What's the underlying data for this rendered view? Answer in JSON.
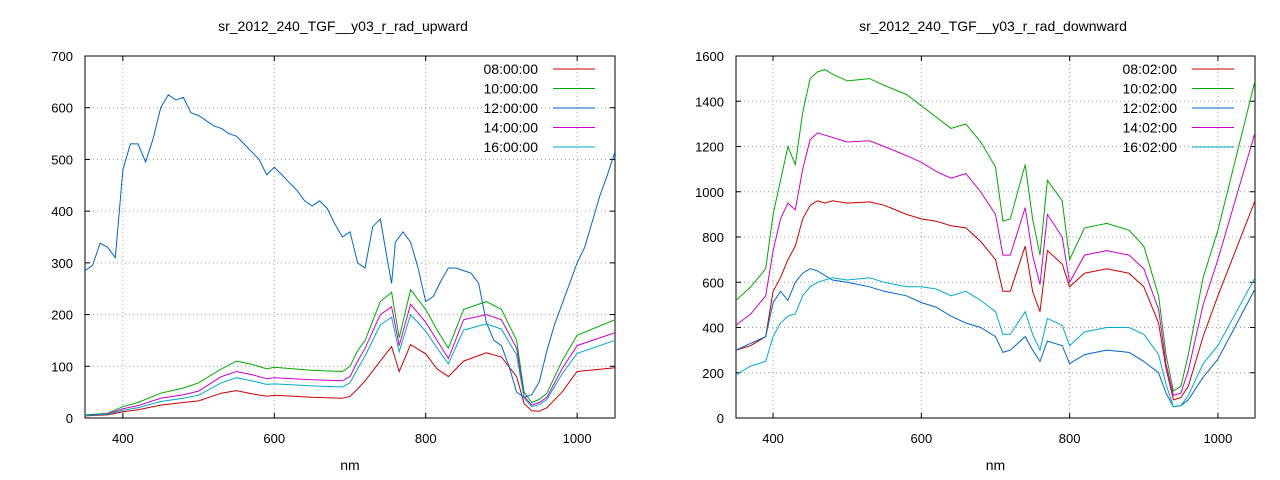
{
  "chart_data": [
    {
      "type": "line",
      "title": "sr_2012_240_TGF__y03_r_rad_upward",
      "xlabel": "nm",
      "ylabel": "",
      "xlim": [
        350,
        1050
      ],
      "ylim": [
        0,
        700
      ],
      "xticks": [
        400,
        600,
        800,
        1000
      ],
      "yticks": [
        0,
        100,
        200,
        300,
        400,
        500,
        600,
        700
      ],
      "grid": true,
      "legend_position": "top-right",
      "series": [
        {
          "name": "08:00:00",
          "color": "#cc0000",
          "x": [
            350,
            380,
            400,
            420,
            450,
            480,
            500,
            530,
            550,
            570,
            590,
            600,
            650,
            690,
            700,
            710,
            720,
            740,
            755,
            765,
            780,
            800,
            815,
            830,
            850,
            880,
            900,
            920,
            930,
            940,
            950,
            960,
            980,
            1000,
            1050
          ],
          "y": [
            4,
            6,
            12,
            16,
            25,
            30,
            33,
            48,
            53,
            47,
            42,
            44,
            40,
            38,
            42,
            56,
            72,
            110,
            138,
            90,
            142,
            124,
            95,
            80,
            110,
            126,
            118,
            80,
            28,
            14,
            13,
            20,
            50,
            90,
            97
          ]
        },
        {
          "name": "10:00:00",
          "color": "#00aa00",
          "x": [
            350,
            380,
            400,
            420,
            450,
            480,
            500,
            530,
            550,
            570,
            590,
            600,
            650,
            690,
            700,
            710,
            720,
            740,
            755,
            765,
            780,
            800,
            815,
            830,
            850,
            880,
            900,
            920,
            930,
            940,
            950,
            960,
            980,
            1000,
            1050
          ],
          "y": [
            6,
            9,
            22,
            30,
            48,
            58,
            68,
            95,
            110,
            104,
            95,
            98,
            92,
            90,
            100,
            130,
            150,
            225,
            243,
            155,
            248,
            210,
            170,
            135,
            210,
            225,
            210,
            150,
            50,
            30,
            36,
            48,
            110,
            160,
            190
          ]
        },
        {
          "name": "12:00:00",
          "color": "#0066cc",
          "x": [
            350,
            360,
            370,
            380,
            390,
            400,
            410,
            420,
            430,
            440,
            450,
            460,
            470,
            480,
            490,
            500,
            520,
            530,
            540,
            550,
            560,
            570,
            580,
            590,
            600,
            610,
            620,
            630,
            640,
            650,
            660,
            670,
            680,
            690,
            700,
            710,
            720,
            730,
            740,
            750,
            755,
            760,
            770,
            780,
            790,
            800,
            810,
            820,
            830,
            840,
            850,
            860,
            870,
            880,
            890,
            900,
            910,
            920,
            930,
            940,
            950,
            960,
            970,
            980,
            990,
            1000,
            1010,
            1020,
            1030,
            1040,
            1050
          ],
          "y": [
            285,
            295,
            338,
            330,
            310,
            480,
            530,
            530,
            495,
            540,
            600,
            625,
            615,
            620,
            590,
            585,
            565,
            560,
            550,
            545,
            530,
            515,
            500,
            470,
            485,
            470,
            455,
            440,
            420,
            410,
            420,
            405,
            375,
            350,
            360,
            300,
            290,
            370,
            385,
            300,
            260,
            340,
            360,
            340,
            290,
            225,
            235,
            265,
            290,
            290,
            285,
            280,
            260,
            185,
            150,
            140,
            100,
            50,
            40,
            45,
            70,
            130,
            180,
            220,
            260,
            300,
            330,
            380,
            430,
            470,
            515
          ]
        },
        {
          "name": "14:00:00",
          "color": "#cc00cc",
          "x": [
            350,
            380,
            400,
            420,
            450,
            480,
            500,
            530,
            550,
            570,
            590,
            600,
            650,
            690,
            700,
            710,
            720,
            740,
            755,
            765,
            780,
            800,
            815,
            830,
            850,
            880,
            900,
            920,
            930,
            940,
            950,
            960,
            980,
            1000,
            1050
          ],
          "y": [
            5,
            8,
            18,
            24,
            38,
            45,
            52,
            80,
            90,
            84,
            76,
            78,
            74,
            72,
            80,
            110,
            135,
            200,
            215,
            140,
            220,
            185,
            150,
            115,
            190,
            200,
            190,
            135,
            42,
            25,
            30,
            40,
            95,
            140,
            165
          ]
        },
        {
          "name": "16:00:00",
          "color": "#00aacc",
          "x": [
            350,
            380,
            400,
            420,
            450,
            480,
            500,
            530,
            550,
            570,
            590,
            600,
            650,
            690,
            700,
            710,
            720,
            740,
            755,
            765,
            780,
            800,
            815,
            830,
            850,
            880,
            900,
            920,
            930,
            940,
            950,
            960,
            980,
            1000,
            1050
          ],
          "y": [
            5,
            7,
            15,
            20,
            32,
            38,
            44,
            68,
            78,
            72,
            65,
            66,
            62,
            60,
            68,
            95,
            120,
            180,
            195,
            128,
            200,
            168,
            135,
            105,
            170,
            182,
            172,
            122,
            38,
            22,
            26,
            36,
            85,
            125,
            150
          ]
        }
      ]
    },
    {
      "type": "line",
      "title": "sr_2012_240_TGF__y03_r_rad_downward",
      "xlabel": "nm",
      "ylabel": "",
      "xlim": [
        350,
        1050
      ],
      "ylim": [
        0,
        1600
      ],
      "xticks": [
        400,
        600,
        800,
        1000
      ],
      "yticks": [
        0,
        200,
        400,
        600,
        800,
        1000,
        1200,
        1400,
        1600
      ],
      "grid": true,
      "legend_position": "top-right",
      "series": [
        {
          "name": "08:02:00",
          "color": "#cc0000",
          "x": [
            350,
            370,
            390,
            400,
            410,
            420,
            430,
            440,
            450,
            460,
            470,
            480,
            500,
            530,
            550,
            580,
            600,
            620,
            640,
            660,
            680,
            700,
            710,
            720,
            740,
            750,
            760,
            770,
            790,
            800,
            820,
            850,
            880,
            900,
            920,
            930,
            940,
            950,
            960,
            980,
            1000,
            1050
          ],
          "y": [
            300,
            320,
            360,
            560,
            620,
            700,
            760,
            880,
            940,
            960,
            950,
            960,
            950,
            955,
            940,
            900,
            880,
            870,
            850,
            840,
            780,
            700,
            560,
            560,
            760,
            560,
            470,
            740,
            680,
            580,
            640,
            660,
            640,
            580,
            420,
            220,
            80,
            90,
            140,
            360,
            540,
            960
          ]
        },
        {
          "name": "10:02:00",
          "color": "#00aa00",
          "x": [
            350,
            370,
            390,
            400,
            410,
            420,
            430,
            440,
            450,
            460,
            470,
            480,
            500,
            530,
            550,
            580,
            600,
            620,
            640,
            660,
            680,
            700,
            710,
            720,
            740,
            750,
            760,
            770,
            790,
            800,
            820,
            850,
            880,
            900,
            920,
            930,
            940,
            950,
            960,
            980,
            1000,
            1050
          ],
          "y": [
            520,
            580,
            660,
            900,
            1050,
            1200,
            1120,
            1350,
            1500,
            1530,
            1540,
            1520,
            1490,
            1500,
            1470,
            1430,
            1380,
            1330,
            1280,
            1300,
            1220,
            1110,
            870,
            880,
            1120,
            880,
            720,
            1050,
            960,
            700,
            840,
            860,
            830,
            760,
            540,
            280,
            120,
            140,
            280,
            620,
            830,
            1490
          ]
        },
        {
          "name": "12:02:00",
          "color": "#0066cc",
          "x": [
            350,
            370,
            390,
            400,
            410,
            420,
            430,
            440,
            450,
            460,
            470,
            480,
            500,
            530,
            550,
            580,
            600,
            620,
            640,
            660,
            680,
            700,
            710,
            720,
            740,
            750,
            760,
            770,
            790,
            800,
            820,
            850,
            880,
            900,
            920,
            930,
            940,
            950,
            960,
            980,
            1000,
            1050
          ],
          "y": [
            300,
            330,
            360,
            510,
            560,
            520,
            600,
            640,
            660,
            650,
            630,
            610,
            600,
            580,
            560,
            540,
            510,
            490,
            450,
            420,
            400,
            360,
            290,
            300,
            360,
            300,
            250,
            340,
            320,
            240,
            280,
            300,
            290,
            250,
            200,
            110,
            50,
            55,
            80,
            180,
            260,
            570
          ]
        },
        {
          "name": "14:02:00",
          "color": "#cc00cc",
          "x": [
            350,
            370,
            390,
            400,
            410,
            420,
            430,
            440,
            450,
            460,
            470,
            480,
            500,
            530,
            550,
            580,
            600,
            620,
            640,
            660,
            680,
            700,
            710,
            720,
            740,
            750,
            760,
            770,
            790,
            800,
            820,
            850,
            880,
            900,
            920,
            930,
            940,
            950,
            960,
            980,
            1000,
            1050
          ],
          "y": [
            410,
            460,
            540,
            740,
            880,
            950,
            920,
            1100,
            1230,
            1260,
            1250,
            1240,
            1220,
            1225,
            1200,
            1160,
            1130,
            1090,
            1060,
            1080,
            1000,
            900,
            720,
            720,
            930,
            720,
            590,
            900,
            800,
            600,
            720,
            740,
            720,
            660,
            480,
            240,
            100,
            110,
            210,
            500,
            700,
            1260
          ]
        },
        {
          "name": "16:02:00",
          "color": "#00aacc",
          "x": [
            350,
            370,
            390,
            400,
            410,
            420,
            430,
            440,
            450,
            460,
            470,
            480,
            500,
            530,
            550,
            580,
            600,
            620,
            640,
            660,
            680,
            700,
            710,
            720,
            740,
            750,
            760,
            770,
            790,
            800,
            820,
            850,
            880,
            900,
            920,
            930,
            940,
            950,
            960,
            980,
            1000,
            1050
          ],
          "y": [
            190,
            230,
            250,
            360,
            420,
            450,
            460,
            540,
            580,
            600,
            610,
            620,
            610,
            620,
            600,
            580,
            580,
            570,
            540,
            560,
            520,
            470,
            370,
            370,
            470,
            370,
            300,
            440,
            410,
            320,
            380,
            400,
            400,
            370,
            280,
            150,
            50,
            55,
            100,
            240,
            320,
            620
          ]
        }
      ]
    }
  ]
}
